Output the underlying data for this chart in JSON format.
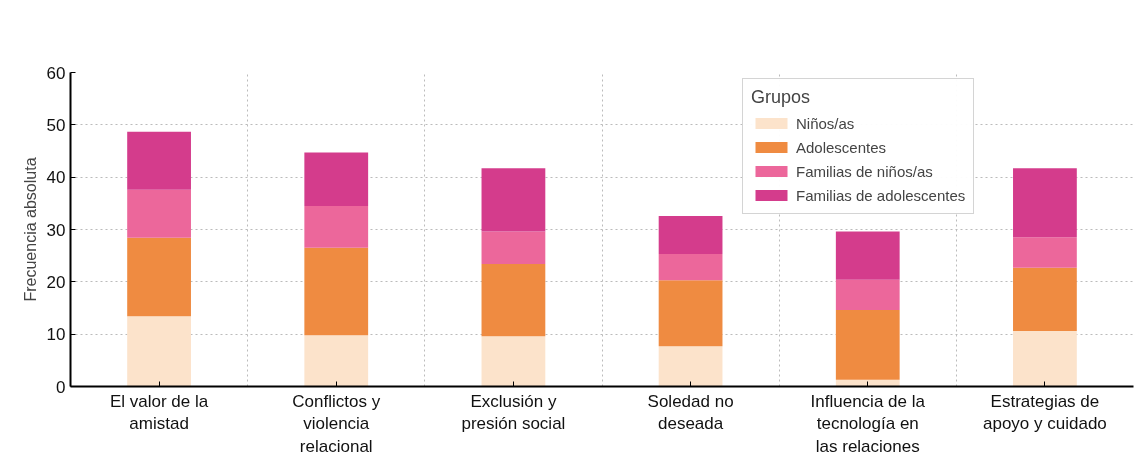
{
  "chart_data": {
    "type": "bar",
    "stacked": true,
    "ylabel": "Frecuencia absoluta",
    "legend_title": "Grupos",
    "legend": "top right",
    "grid": true,
    "categories": [
      "El valor de la amistad",
      "Conflictos y violencia relacional",
      "Exclusión y presión social",
      "Soledad no deseada",
      "Influencia de la tecnología en las relaciones",
      "Estrategias de apoyo y cuidado"
    ],
    "ylim": [
      0,
      60
    ],
    "yticks": [
      0,
      10,
      20,
      30,
      40,
      50,
      60
    ],
    "series": [
      {
        "name": "Niños/as",
        "color": "#fce3cb",
        "values": [
          13.4,
          9.8,
          9.6,
          7.7,
          1.3,
          10.6
        ]
      },
      {
        "name": "Adolescentes",
        "color": "#ef8b41",
        "values": [
          15.0,
          16.7,
          13.8,
          12.6,
          13.3,
          12.1
        ]
      },
      {
        "name": "Familias de niños/as",
        "color": "#ec679b",
        "values": [
          9.2,
          8.0,
          6.2,
          5.0,
          5.8,
          5.8
        ]
      },
      {
        "name": "Familias de adolescentes",
        "color": "#d43c8c",
        "values": [
          11.1,
          10.2,
          12.1,
          7.3,
          9.2,
          13.2
        ]
      }
    ]
  }
}
